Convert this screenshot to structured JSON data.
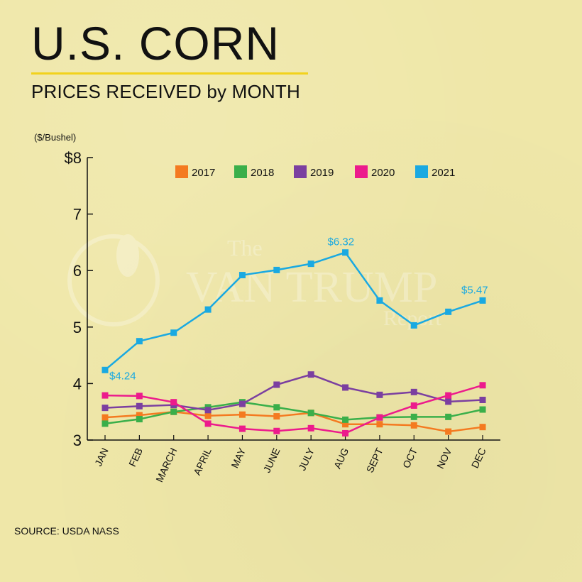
{
  "header": {
    "title": "U.S. CORN",
    "subtitle": "PRICES RECEIVED by MONTH",
    "unit": "($/Bushel)",
    "source": "SOURCE: USDA NASS"
  },
  "watermark": {
    "top": "The",
    "middle": "VAN TRUMP",
    "bottom": "Report"
  },
  "chart_data": {
    "type": "line",
    "categories": [
      "JAN",
      "FEB",
      "MARCH",
      "APRIL",
      "MAY",
      "JUNE",
      "JULY",
      "AUG",
      "SEPT",
      "OCT",
      "NOV",
      "DEC"
    ],
    "ylim": [
      3,
      8
    ],
    "yticks": [
      {
        "value": 8,
        "label": "$8"
      },
      {
        "value": 7,
        "label": "7"
      },
      {
        "value": 6,
        "label": "6"
      },
      {
        "value": 5,
        "label": "5"
      },
      {
        "value": 4,
        "label": "4"
      },
      {
        "value": 3,
        "label": "3"
      }
    ],
    "legend_position": "top",
    "grid": false,
    "series": [
      {
        "name": "2017",
        "color": "#f47a20",
        "values": [
          3.4,
          3.44,
          3.5,
          3.43,
          3.45,
          3.42,
          3.48,
          3.28,
          3.28,
          3.26,
          3.15,
          3.23
        ]
      },
      {
        "name": "2018",
        "color": "#3aaf4a",
        "values": [
          3.29,
          3.37,
          3.5,
          3.58,
          3.67,
          3.58,
          3.48,
          3.36,
          3.4,
          3.41,
          3.41,
          3.54
        ]
      },
      {
        "name": "2019",
        "color": "#7b3fa0",
        "values": [
          3.57,
          3.6,
          3.62,
          3.53,
          3.64,
          3.98,
          4.16,
          3.93,
          3.8,
          3.85,
          3.68,
          3.71
        ]
      },
      {
        "name": "2020",
        "color": "#ec1b8c",
        "values": [
          3.79,
          3.78,
          3.67,
          3.29,
          3.2,
          3.16,
          3.21,
          3.12,
          3.4,
          3.61,
          3.79,
          3.97
        ]
      },
      {
        "name": "2021",
        "color": "#1aa9e1",
        "values": [
          4.24,
          4.75,
          4.9,
          5.31,
          5.92,
          6.01,
          6.12,
          6.32,
          5.47,
          5.03,
          5.27,
          5.47
        ]
      }
    ],
    "annotations": [
      {
        "series": "2021",
        "index": 0,
        "label": "$4.24",
        "color": "#1aa9e1"
      },
      {
        "series": "2021",
        "index": 7,
        "label": "$6.32",
        "color": "#1aa9e1"
      },
      {
        "series": "2021",
        "index": 11,
        "label": "$5.47",
        "color": "#1aa9e1"
      }
    ]
  }
}
